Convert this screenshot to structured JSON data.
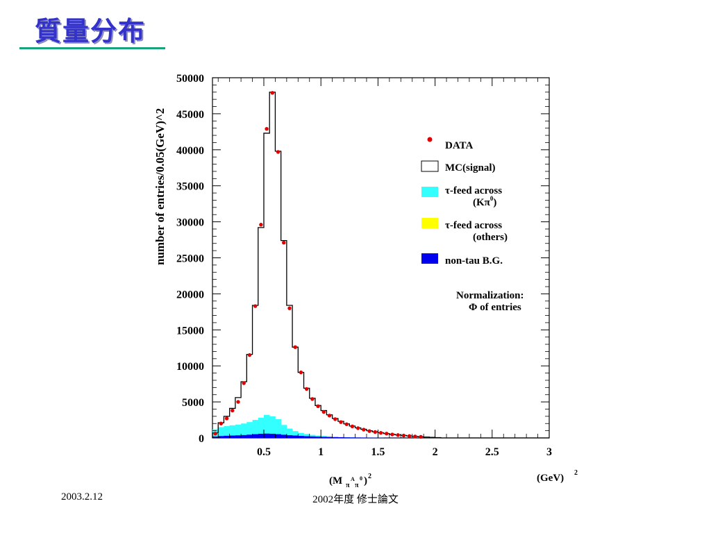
{
  "slide": {
    "title": "質量分布",
    "footer_left": "2003.2.12",
    "footer_center": "2002年度 修士論文"
  },
  "colors": {
    "title": "#3333cc",
    "data_points": "#e00000",
    "mc_signal": "#000000",
    "tau_feed_k": "#33ffff",
    "tau_feed_others": "#ffff00",
    "non_tau": "#0000ee"
  },
  "chart_data": {
    "type": "histogram",
    "title": "",
    "xlabel": "(M_{π^A π^0})^2",
    "xunit": "(GeV)^2",
    "ylabel": "number of entries/0.05(GeV)^2",
    "xlim": [
      0.05,
      3.0
    ],
    "ylim": [
      0,
      50000
    ],
    "bin_width": 0.05,
    "x_ticks": [
      "0.5",
      "1",
      "1.5",
      "2",
      "2.5",
      "3"
    ],
    "y_ticks": [
      "0",
      "5000",
      "10000",
      "15000",
      "20000",
      "25000",
      "30000",
      "35000",
      "40000",
      "45000",
      "50000"
    ],
    "bin_edges_start": 0.05,
    "mc_signal": [
      700,
      2100,
      3000,
      4100,
      5600,
      7800,
      11600,
      18400,
      29200,
      42300,
      48000,
      39800,
      27400,
      18400,
      12600,
      9100,
      6900,
      5500,
      4500,
      3800,
      3200,
      2700,
      2300,
      1950,
      1650,
      1400,
      1200,
      1000,
      850,
      720,
      600,
      500,
      420,
      350,
      280,
      220,
      170,
      120,
      80,
      50
    ],
    "data": {
      "name": "DATA",
      "x": [
        0.075,
        0.125,
        0.175,
        0.225,
        0.275,
        0.325,
        0.375,
        0.425,
        0.475,
        0.525,
        0.575,
        0.625,
        0.675,
        0.725,
        0.775,
        0.825,
        0.875,
        0.925,
        0.975,
        1.025,
        1.075,
        1.125,
        1.175,
        1.225,
        1.275,
        1.325,
        1.375,
        1.425,
        1.475,
        1.525,
        1.575,
        1.625,
        1.675,
        1.725,
        1.775,
        1.825,
        1.875
      ],
      "y": [
        600,
        2000,
        2700,
        3800,
        5000,
        7600,
        11500,
        18300,
        29600,
        42900,
        47900,
        39700,
        27100,
        18000,
        12600,
        9100,
        6800,
        5400,
        4400,
        3600,
        3100,
        2600,
        2200,
        1900,
        1600,
        1350,
        1150,
        950,
        820,
        700,
        600,
        480,
        400,
        330,
        260,
        200,
        150
      ]
    },
    "tau_feed_k": [
      1200,
      1500,
      1650,
      1750,
      1850,
      2000,
      2200,
      2500,
      2800,
      3200,
      3000,
      2600,
      1800,
      1300,
      950,
      700,
      550,
      420,
      330,
      260,
      200,
      160,
      120,
      90,
      70,
      55,
      40,
      30,
      20,
      15
    ],
    "tau_feed_others": [
      900,
      1100,
      1200,
      1250,
      1300,
      1450,
      1650,
      1900,
      2100,
      2400,
      2500,
      2300,
      1500,
      1100,
      800,
      600,
      450,
      350,
      270,
      210,
      160,
      130,
      100,
      75,
      55,
      40,
      30,
      20,
      15,
      10
    ],
    "non_tau": [
      200,
      260,
      300,
      330,
      360,
      400,
      450,
      520,
      580,
      600,
      580,
      520,
      440,
      380,
      330,
      280,
      240,
      210,
      180,
      150,
      130,
      110,
      95,
      80,
      70,
      60,
      50,
      40,
      32,
      25,
      20,
      15,
      12,
      10,
      8,
      6,
      5,
      4,
      3,
      2
    ],
    "legend": {
      "placement": "right",
      "entries": [
        {
          "key": "data",
          "label": "DATA"
        },
        {
          "key": "mc_signal",
          "label": "MC(signal)"
        },
        {
          "key": "tau_feed_k",
          "label": "τ-feed across",
          "label2": "(Kπ0)"
        },
        {
          "key": "tau_feed_others",
          "label": "τ-feed across",
          "label2": "(others)"
        },
        {
          "key": "non_tau",
          "label": "non-tau B.G."
        }
      ]
    },
    "annotation": {
      "line1": "Normalization:",
      "line2": "Φ of entries"
    }
  }
}
